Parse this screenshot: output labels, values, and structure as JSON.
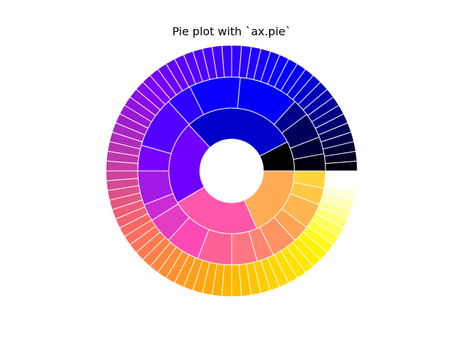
{
  "chart_data": {
    "type": "pie",
    "subtype": "nested-donut",
    "title": "Pie plot with `ax.pie`",
    "colormap": "gnuplot2",
    "start_angle_deg": 0,
    "direction": "counterclockwise",
    "wedge_edgecolor": "#ffffff",
    "rings": [
      {
        "name": "inner",
        "values": [
          2.5,
          9.5,
          7,
          7.5,
          6
        ],
        "colors": [
          "#000000",
          "#0000cb",
          "#6f00ff",
          "#ff57a9",
          "#ffac54"
        ]
      },
      {
        "name": "middle",
        "values": [
          1,
          1,
          1.5,
          1,
          3.5,
          3,
          1.5,
          3,
          1.5,
          2,
          1,
          1.5,
          2,
          2,
          1.5,
          1,
          1.5,
          1,
          1.5,
          1,
          1
        ],
        "colors": [
          "#000010",
          "#000036",
          "#00005c",
          "#00008a",
          "#0000f6",
          "#0b00ff",
          "#2e00ff",
          "#5200ff",
          "#7700ff",
          "#a319e6",
          "#cc2bd4",
          "#e33cc3",
          "#ff4ab5",
          "#ff6098",
          "#ff7683",
          "#ff8570",
          "#ff9361",
          "#ffa453",
          "#ffb54f",
          "#ffc744",
          "#ffd43b"
        ]
      },
      {
        "name": "outer",
        "values": [
          1,
          1,
          1,
          1,
          1,
          1,
          1,
          1,
          1,
          1,
          1,
          1,
          1,
          1,
          1,
          1,
          1,
          1,
          1,
          1,
          1,
          1,
          1,
          1,
          1,
          1,
          1,
          1,
          1,
          1,
          1,
          1,
          1,
          1,
          1,
          1,
          1,
          1,
          1,
          1,
          1,
          1,
          1,
          1,
          1,
          1,
          1,
          1,
          1,
          1,
          1,
          1,
          1,
          1,
          1,
          1,
          1,
          1,
          1,
          1,
          1,
          1,
          1,
          1,
          1,
          1,
          1,
          1,
          1,
          1,
          1,
          1,
          1,
          1,
          1,
          1,
          1,
          1,
          1,
          1
        ],
        "colors": [
          "#000010",
          "#000023",
          "#000036",
          "#000049",
          "#00005c",
          "#000070",
          "#000083",
          "#000096",
          "#0000a9",
          "#0000bc",
          "#0000d0",
          "#0000e3",
          "#0000f6",
          "#0400ff",
          "#0b00ff",
          "#1300ff",
          "#1a00ff",
          "#2200ff",
          "#2900ff",
          "#3100ff",
          "#3800ff",
          "#4000ff",
          "#4700ff",
          "#4f00ff",
          "#5600ff",
          "#5d00ff",
          "#6500ff",
          "#6c00ff",
          "#7400ff",
          "#7b00f9",
          "#8306f0",
          "#8a0ce8",
          "#9212df",
          "#9918d7",
          "#a11ece",
          "#a825c6",
          "#b02bbd",
          "#b731b5",
          "#bf37ac",
          "#c63da4",
          "#ce439b",
          "#d54a93",
          "#dd508a",
          "#e45682",
          "#ec5c79",
          "#f36271",
          "#fb6868",
          "#ff6e60",
          "#ff7458",
          "#ff7a4f",
          "#ff8047",
          "#ff863e",
          "#ff8c36",
          "#ff922d",
          "#ff9825",
          "#ff9e1c",
          "#ffa414",
          "#ffa90b",
          "#ffaf03",
          "#ffb500",
          "#ffba00",
          "#ffc000",
          "#ffc500",
          "#ffcb00",
          "#ffd100",
          "#ffd600",
          "#ffdc00",
          "#ffe100",
          "#ffe700",
          "#ffec00",
          "#fff200",
          "#fff81a",
          "#fffd3a",
          "#ffff5a",
          "#ffff7a",
          "#ffff9a",
          "#ffffba",
          "#ffffda",
          "#fffffa",
          "#ffffff"
        ]
      }
    ]
  }
}
